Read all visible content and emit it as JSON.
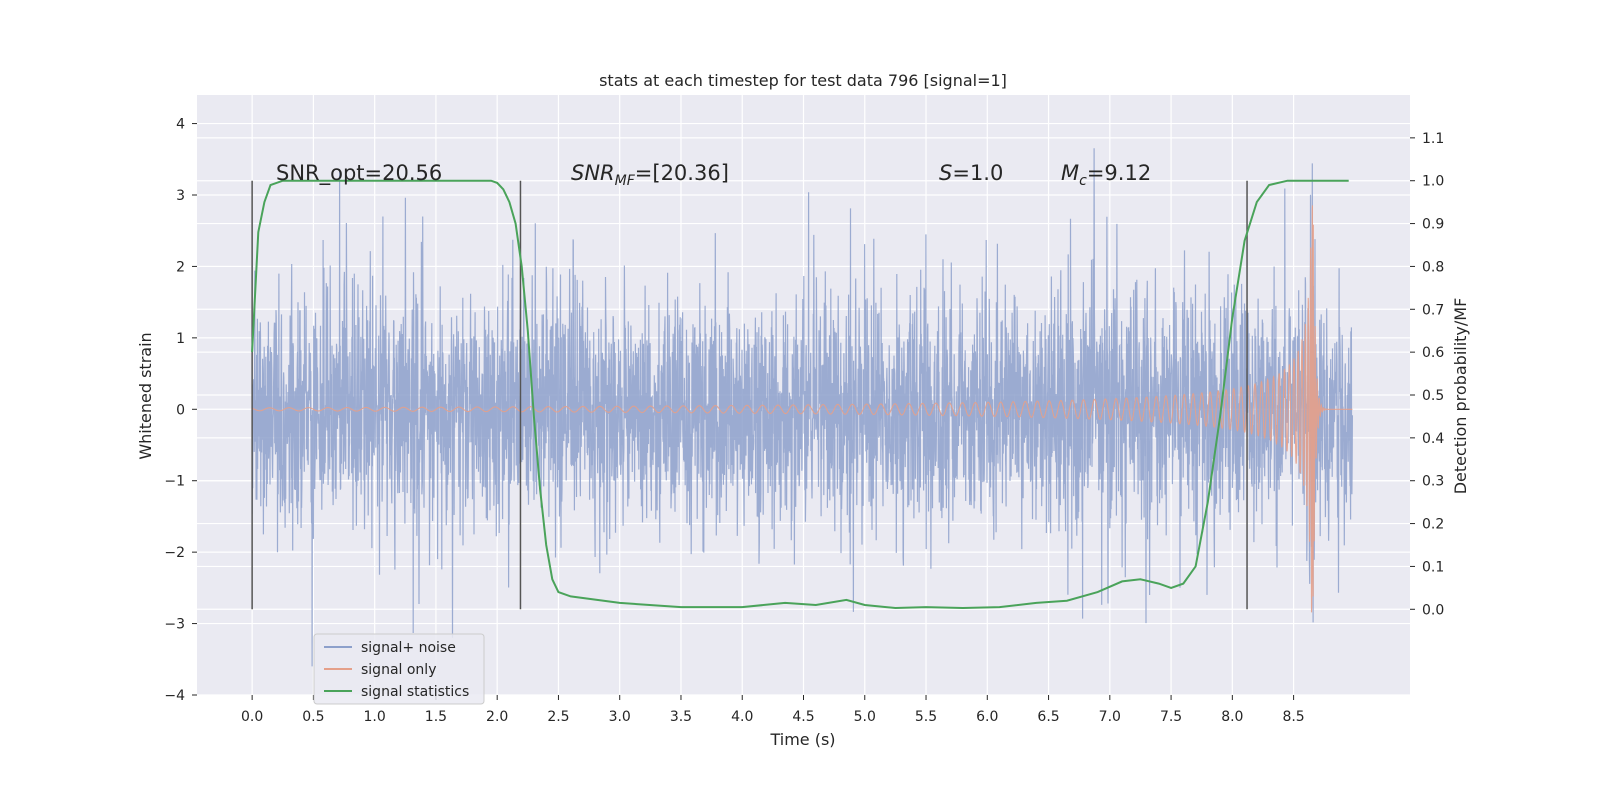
{
  "chart_data": {
    "type": "line",
    "title": "stats at each timestep for test data 796 [signal=1]",
    "xlabel": "Time (s)",
    "ylabel_left": "Whitened strain",
    "ylabel_right": "Detection probability/MF",
    "xlim": [
      -0.45,
      9.45
    ],
    "ylim_left": [
      -4.0,
      4.4
    ],
    "ylim_right": [
      -0.2,
      1.2
    ],
    "x_ticks": [
      "0.0",
      "0.5",
      "1.0",
      "1.5",
      "2.0",
      "2.5",
      "3.0",
      "3.5",
      "4.0",
      "4.5",
      "5.0",
      "5.5",
      "6.0",
      "6.5",
      "7.0",
      "7.5",
      "8.0",
      "8.5"
    ],
    "y_ticks_left": [
      "4",
      "3",
      "2",
      "1",
      "0",
      "−1",
      "−2",
      "−3",
      "−4"
    ],
    "y_ticks_right": [
      "1.1",
      "1.0",
      "0.9",
      "0.8",
      "0.7",
      "0.6",
      "0.5",
      "0.4",
      "0.3",
      "0.2",
      "0.1",
      "0.0"
    ],
    "grid": true,
    "legend_position": "lower-left",
    "annotations": {
      "snr_opt": "SNR_opt=20.56",
      "snr_mf_base": "SNR",
      "snr_mf_sub": "MF",
      "snr_mf_value": "=[20.36]",
      "s_label": "S",
      "s_value": "=1.0",
      "mc_base": "M",
      "mc_sub": "c",
      "mc_value": "=9.12"
    },
    "vertical_markers": [
      0.0,
      2.19,
      8.12
    ],
    "series": [
      {
        "name": "signal+ noise",
        "color": "#8da0cb",
        "description": "noisy whitened strain, roughly -3 to 3.5 over t = 0 to 8.98 s"
      },
      {
        "name": "signal only",
        "color": "#e5a08a",
        "chirp": {
          "t_start": 0.0,
          "t_merger": 8.66,
          "t_end": 8.98,
          "peak_amplitude": 3.1
        }
      },
      {
        "name": "signal statistics",
        "color": "#4aa35a",
        "axis": "right",
        "points": [
          [
            0.0,
            0.6
          ],
          [
            0.05,
            0.88
          ],
          [
            0.1,
            0.95
          ],
          [
            0.15,
            0.99
          ],
          [
            0.25,
            1.0
          ],
          [
            1.95,
            1.0
          ],
          [
            2.0,
            0.995
          ],
          [
            2.05,
            0.98
          ],
          [
            2.1,
            0.95
          ],
          [
            2.15,
            0.9
          ],
          [
            2.2,
            0.8
          ],
          [
            2.25,
            0.65
          ],
          [
            2.3,
            0.45
          ],
          [
            2.35,
            0.28
          ],
          [
            2.4,
            0.15
          ],
          [
            2.45,
            0.07
          ],
          [
            2.5,
            0.04
          ],
          [
            2.6,
            0.03
          ],
          [
            3.0,
            0.015
          ],
          [
            3.5,
            0.005
          ],
          [
            4.0,
            0.005
          ],
          [
            4.35,
            0.015
          ],
          [
            4.6,
            0.01
          ],
          [
            4.85,
            0.022
          ],
          [
            5.0,
            0.01
          ],
          [
            5.25,
            0.003
          ],
          [
            5.5,
            0.005
          ],
          [
            5.8,
            0.003
          ],
          [
            6.1,
            0.005
          ],
          [
            6.4,
            0.015
          ],
          [
            6.65,
            0.02
          ],
          [
            6.9,
            0.04
          ],
          [
            7.1,
            0.065
          ],
          [
            7.25,
            0.07
          ],
          [
            7.4,
            0.06
          ],
          [
            7.5,
            0.05
          ],
          [
            7.6,
            0.06
          ],
          [
            7.7,
            0.1
          ],
          [
            7.8,
            0.25
          ],
          [
            7.9,
            0.45
          ],
          [
            8.0,
            0.68
          ],
          [
            8.1,
            0.86
          ],
          [
            8.2,
            0.95
          ],
          [
            8.3,
            0.99
          ],
          [
            8.45,
            1.0
          ],
          [
            8.95,
            1.0
          ]
        ]
      }
    ]
  }
}
